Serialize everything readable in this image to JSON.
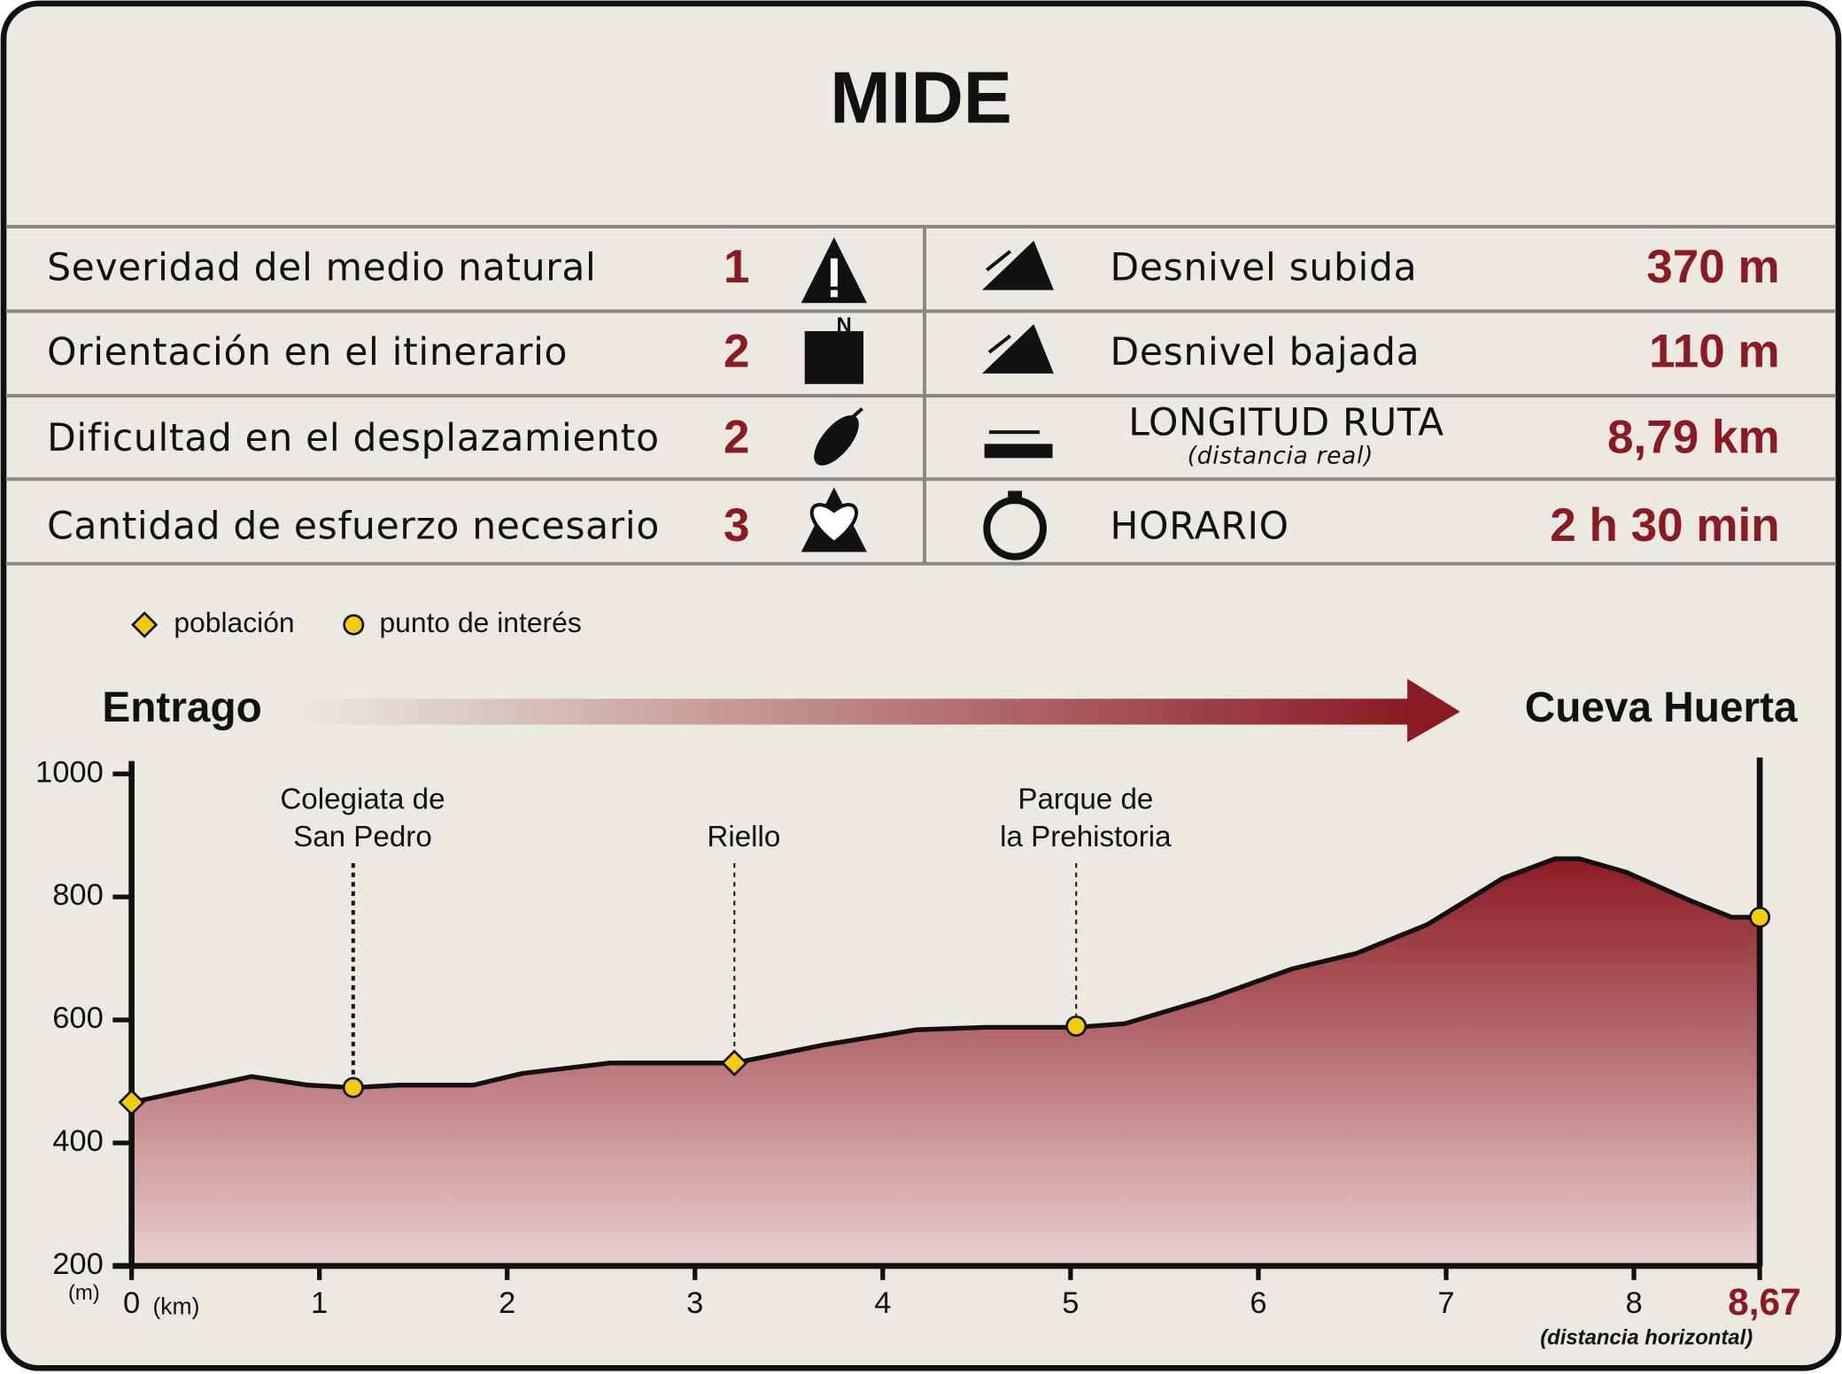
{
  "header": {
    "title": "MIDE"
  },
  "table": {
    "rows": [
      {
        "label": "Severidad del medio natural",
        "value": "1",
        "right_label": "Desnivel subida",
        "right_value": "370 m"
      },
      {
        "label": "Orientación en el itinerario",
        "value": "2",
        "right_label": "Desnivel bajada",
        "right_value": "110 m"
      },
      {
        "label": "Dificultad en el desplazamiento",
        "value": "2",
        "right_label": "LONGITUD RUTA",
        "right_sublabel": "(distancia real)",
        "right_value": "8,79 km"
      },
      {
        "label": "Cantidad de esfuerzo necesario",
        "value": "3",
        "right_label": "HORARIO",
        "right_value": "2 h 30 min"
      }
    ]
  },
  "chart_data": {
    "type": "area",
    "start_label": "Entrago",
    "end_label": "Cueva Huerta",
    "y_unit": "(m)",
    "x_unit": "(km)",
    "x_note": "(distancia horizontal)",
    "legend": [
      "población",
      "punto de interés"
    ],
    "x": [
      0,
      0.64,
      0.94,
      1.18,
      1.42,
      1.82,
      2.08,
      2.55,
      3.13,
      3.21,
      3.68,
      4.18,
      4.55,
      5.03,
      5.29,
      5.74,
      6.18,
      6.52,
      6.9,
      7.3,
      7.58,
      7.71,
      7.96,
      8.3,
      8.52,
      8.67
    ],
    "values": [
      466,
      508,
      494,
      490,
      494,
      494,
      513,
      530,
      530,
      530,
      559,
      584,
      588,
      588,
      594,
      635,
      683,
      708,
      755,
      830,
      862,
      862,
      840,
      794,
      767,
      767
    ],
    "markers": [
      {
        "kind": 0,
        "x": 0,
        "y": 466
      },
      {
        "kind": 1,
        "x": 1.18,
        "y": 490,
        "label": [
          "Colegiata de",
          "San Pedro"
        ]
      },
      {
        "kind": 0,
        "x": 3.21,
        "y": 530,
        "label": [
          "Riello"
        ]
      },
      {
        "kind": 1,
        "x": 5.03,
        "y": 590,
        "label": [
          "Parque de",
          "la Prehistoria"
        ]
      },
      {
        "kind": 1,
        "x": 8.67,
        "y": 767
      }
    ],
    "xlim": [
      0,
      8.67
    ],
    "ylim": [
      200,
      1000
    ],
    "xticks": [
      0,
      1,
      2,
      3,
      4,
      5,
      6,
      7,
      8,
      {
        "value": 8.67,
        "label": "8,67"
      }
    ],
    "yticks": [
      200,
      400,
      600,
      800,
      1000
    ],
    "fill_top": "#8b1a22",
    "fill_bottom": "#ead0d0",
    "marker_color": "#f2cc0c"
  }
}
